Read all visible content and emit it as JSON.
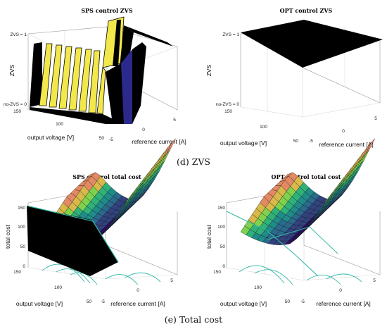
{
  "colors": {
    "yellow": "#f2e84b",
    "black": "#000000",
    "navy": "#2b2a8c",
    "viridis": [
      "#2a0f5e",
      "#31427f",
      "#2a6a8c",
      "#1f8c8a",
      "#2fb27a",
      "#7fd24e",
      "#d8b94a",
      "#e38a64"
    ],
    "contour": "#35b8a6"
  },
  "captions": {
    "zvs": "(d) ZVS",
    "cost": "(e) Total cost"
  },
  "chart_data": [
    {
      "type": "surface3d",
      "title": "SPS control ZVS",
      "xlabel": "reference current [A]",
      "ylabel": "output voltage [V]",
      "zlabel": "ZVS",
      "x_ticks": [
        "-5",
        "0",
        "5"
      ],
      "y_ticks": [
        "50",
        "100",
        "150"
      ],
      "z_ticks": [
        "no-ZVS = 0",
        "ZVS = 1"
      ],
      "xlim": [
        -7,
        7
      ],
      "ylim": [
        40,
        160
      ],
      "zlim": [
        0,
        1
      ]
    },
    {
      "type": "surface3d",
      "title": "OPT control ZVS",
      "xlabel": "reference current [A]",
      "ylabel": "output voltage [V]",
      "zlabel": "ZVS",
      "x_ticks": [
        "-5",
        "0",
        "5"
      ],
      "y_ticks": [
        "50",
        "100",
        "150"
      ],
      "z_ticks": [
        "no-ZVS = 0",
        "ZVS = 1"
      ],
      "xlim": [
        -7,
        7
      ],
      "ylim": [
        40,
        160
      ],
      "zlim": [
        0,
        1
      ]
    },
    {
      "type": "surface3d",
      "title": "SPS control total cost",
      "xlabel": "reference current [A]",
      "ylabel": "output voltage [V]",
      "zlabel": "total cost",
      "x_ticks": [
        "-5",
        "0",
        "5"
      ],
      "y_ticks": [
        "50",
        "100",
        "150"
      ],
      "z_ticks": [
        "0",
        "50",
        "100",
        "150"
      ],
      "xlim": [
        -7,
        7
      ],
      "ylim": [
        40,
        160
      ],
      "zlim": [
        0,
        170
      ]
    },
    {
      "type": "surface3d",
      "title": "OPT control total cost",
      "xlabel": "reference current [A]",
      "ylabel": "output voltage [V]",
      "zlabel": "total cost",
      "x_ticks": [
        "-5",
        "0",
        "5"
      ],
      "y_ticks": [
        "50",
        "100",
        "150"
      ],
      "z_ticks": [
        "0",
        "50",
        "100",
        "150"
      ],
      "xlim": [
        -7,
        7
      ],
      "ylim": [
        40,
        160
      ],
      "zlim": [
        0,
        170
      ]
    }
  ]
}
